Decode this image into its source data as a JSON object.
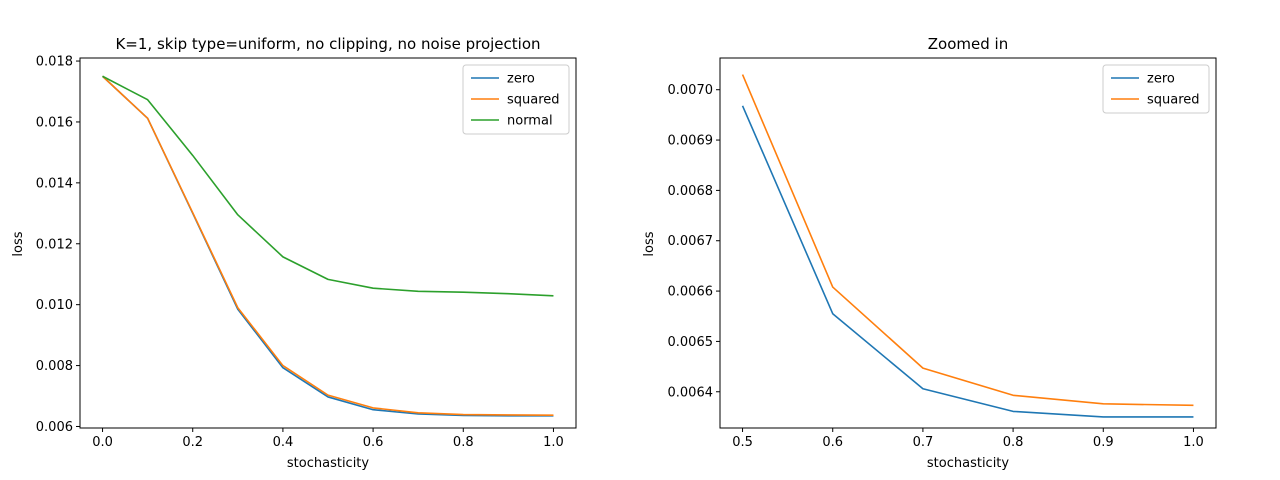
{
  "chart_data": [
    {
      "type": "line",
      "title": "K=1, skip type=uniform, no clipping, no noise projection",
      "xlabel": "stochasticity",
      "ylabel": "loss",
      "xlim": [
        -0.05,
        1.05
      ],
      "ylim": [
        0.00595,
        0.0181
      ],
      "xticks": [
        0.0,
        0.2,
        0.4,
        0.6,
        0.8,
        1.0
      ],
      "xtick_labels": [
        "0.0",
        "0.2",
        "0.4",
        "0.6",
        "0.8",
        "1.0"
      ],
      "yticks": [
        0.006,
        0.008,
        0.01,
        0.012,
        0.014,
        0.016,
        0.018
      ],
      "ytick_labels": [
        "0.006",
        "0.008",
        "0.010",
        "0.012",
        "0.014",
        "0.016",
        "0.018"
      ],
      "grid": false,
      "legend_position": "top-right",
      "x": [
        0.0,
        0.1,
        0.2,
        0.3,
        0.4,
        0.5,
        0.6,
        0.7,
        0.8,
        0.9,
        1.0
      ],
      "series": [
        {
          "name": "zero",
          "color": "#1f77b4",
          "values": [
            0.0175,
            0.01612,
            0.013,
            0.00985,
            0.00793,
            0.00697,
            0.00655,
            0.00641,
            0.00636,
            0.00635,
            0.00635
          ]
        },
        {
          "name": "squared",
          "color": "#ff7f0e",
          "values": [
            0.0175,
            0.01612,
            0.01302,
            0.0099,
            0.008,
            0.00703,
            0.00661,
            0.00645,
            0.00639,
            0.00638,
            0.00637
          ]
        },
        {
          "name": "normal",
          "color": "#2ca02c",
          "values": [
            0.0175,
            0.01673,
            0.0149,
            0.01295,
            0.01157,
            0.01083,
            0.01054,
            0.01044,
            0.01041,
            0.01036,
            0.01029
          ]
        }
      ]
    },
    {
      "type": "line",
      "title": "Zoomed in",
      "xlabel": "stochasticity",
      "ylabel": "loss",
      "xlim": [
        0.475,
        1.025
      ],
      "ylim": [
        0.006328,
        0.007063
      ],
      "xticks": [
        0.5,
        0.6,
        0.7,
        0.8,
        0.9,
        1.0
      ],
      "xtick_labels": [
        "0.5",
        "0.6",
        "0.7",
        "0.8",
        "0.9",
        "1.0"
      ],
      "yticks": [
        0.0064,
        0.0065,
        0.0066,
        0.0067,
        0.0068,
        0.0069,
        0.007
      ],
      "ytick_labels": [
        "0.0064",
        "0.0065",
        "0.0066",
        "0.0067",
        "0.0068",
        "0.0069",
        "0.0070"
      ],
      "grid": false,
      "legend_position": "top-right",
      "x": [
        0.5,
        0.6,
        0.7,
        0.8,
        0.9,
        1.0
      ],
      "series": [
        {
          "name": "zero",
          "color": "#1f77b4",
          "values": [
            0.006968,
            0.006555,
            0.006406,
            0.006361,
            0.00635,
            0.00635
          ]
        },
        {
          "name": "squared",
          "color": "#ff7f0e",
          "values": [
            0.00703,
            0.006608,
            0.006447,
            0.006393,
            0.006376,
            0.006373
          ]
        }
      ]
    }
  ]
}
